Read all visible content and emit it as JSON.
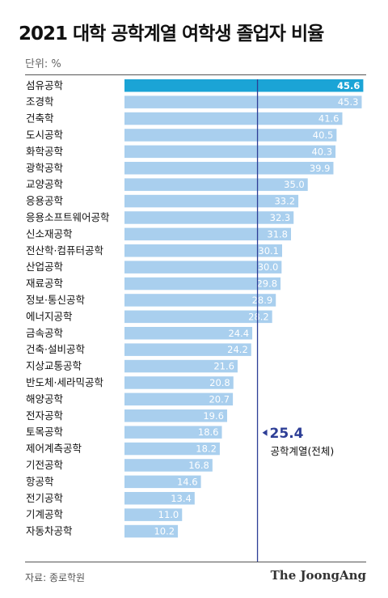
{
  "header": {
    "title": "2021 대학 공학계열 여학생 졸업자 비율",
    "unit": "단위: %"
  },
  "footer": {
    "source": "자료: 종로학원",
    "brand": "The JoongAng"
  },
  "colors": {
    "highlight": "#1ba4d6",
    "bar": "#a9cfee",
    "reference_line": "#2d3e96",
    "highlight_label": "#ffffff"
  },
  "chart_data": {
    "type": "bar",
    "orientation": "horizontal",
    "categories": [
      "섬유공학",
      "조경학",
      "건축학",
      "도시공학",
      "화학공학",
      "광학공학",
      "교양공학",
      "응용공학",
      "응용소프트웨어공학",
      "신소재공학",
      "전산학·컴퓨터공학",
      "산업공학",
      "재료공학",
      "정보·통신공학",
      "에너지공학",
      "금속공학",
      "건축·설비공학",
      "지상교통공학",
      "반도체·세라믹공학",
      "해양공학",
      "전자공학",
      "토목공학",
      "제어계측공학",
      "기전공학",
      "항공학",
      "전기공학",
      "기계공학",
      "자동차공학"
    ],
    "values": [
      45.6,
      45.3,
      41.6,
      40.5,
      40.3,
      39.9,
      35.0,
      33.2,
      32.3,
      31.8,
      30.1,
      30.0,
      29.8,
      28.9,
      28.2,
      24.4,
      24.2,
      21.6,
      20.8,
      20.7,
      19.6,
      18.6,
      18.2,
      16.8,
      14.6,
      13.4,
      11.0,
      10.2
    ],
    "value_labels": [
      "45.6",
      "45.3",
      "41.6",
      "40.5",
      "40.3",
      "39.9",
      "35.0",
      "33.2",
      "32.3",
      "31.8",
      "30.1",
      "30.0",
      "29.8",
      "28.9",
      "28.2",
      "24.4",
      "24.2",
      "21.6",
      "20.8",
      "20.7",
      "19.6",
      "18.6",
      "18.2",
      "16.8",
      "14.6",
      "13.4",
      "11.0",
      "10.2"
    ],
    "highlight_index": 0,
    "reference": {
      "value": 25.4,
      "value_label": "25.4",
      "label": "공학계열(전체)"
    },
    "xlim": [
      0,
      46
    ],
    "grid": false,
    "legend": "none"
  }
}
